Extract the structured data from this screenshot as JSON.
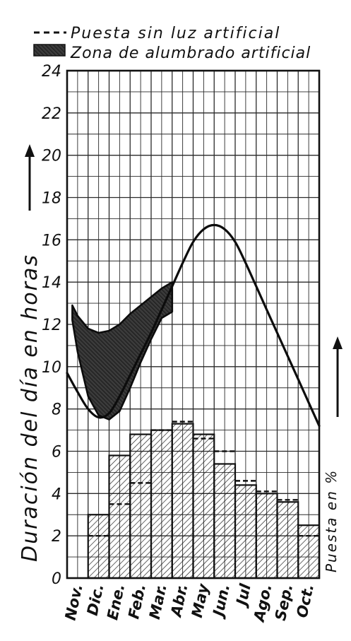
{
  "chart_data": {
    "type": "bar",
    "legend": {
      "placement": "top",
      "entries": [
        {
          "marker": "dashed-line",
          "label": "Puesta sin luz artificial"
        },
        {
          "marker": "hatched-box",
          "label": "Zona de alumbrado artificial"
        }
      ]
    },
    "ylabel": "Duración del día en horas",
    "y2label": "Puesta en %",
    "ylim": [
      0,
      24
    ],
    "yticks": [
      "0",
      "2",
      "4",
      "6",
      "8",
      "10",
      "12",
      "14",
      "16",
      "18",
      "20",
      "22",
      "24"
    ],
    "categories": [
      "Nov.",
      "Dic.",
      "Ene.",
      "Feb.",
      "Mar.",
      "Abr.",
      "May",
      "Jun.",
      "Jul",
      "Ago.",
      "Sep.",
      "Oct."
    ],
    "x_range_months": [
      0,
      12
    ],
    "grid": true,
    "day_length": {
      "x": [
        0,
        0.5,
        1,
        1.5,
        2,
        2.5,
        3,
        3.5,
        4,
        4.5,
        5,
        5.5,
        6,
        6.5,
        7,
        7.5,
        8,
        8.5,
        9,
        9.5,
        10,
        10.5,
        11,
        11.5,
        12
      ],
      "y": [
        9.7,
        8.8,
        8.0,
        7.6,
        7.8,
        8.6,
        9.6,
        10.6,
        11.6,
        12.7,
        13.8,
        14.9,
        15.9,
        16.5,
        16.7,
        16.5,
        15.9,
        14.9,
        13.8,
        12.7,
        11.6,
        10.5,
        9.4,
        8.3,
        7.2
      ]
    },
    "lighting_zone": {
      "x": [
        0.25,
        0.5,
        1,
        1.5,
        2,
        2.5,
        3,
        3.5,
        4,
        4.5,
        5
      ],
      "upper": [
        12.9,
        12.4,
        11.8,
        11.6,
        11.7,
        12.0,
        12.5,
        12.9,
        13.3,
        13.7,
        14.0
      ],
      "lower": [
        12.2,
        10.7,
        8.6,
        7.7,
        7.5,
        7.9,
        9.0,
        10.2,
        11.3,
        12.3,
        12.6
      ]
    },
    "series": [
      {
        "name": "Puesta sin luz artificial",
        "style": "dashed",
        "values": [
          0,
          2.0,
          3.5,
          4.5,
          7.0,
          7.4,
          6.6,
          6.0,
          4.6,
          4.1,
          3.7,
          2.0
        ]
      },
      {
        "style": "hatched-bars",
        "values": [
          0,
          3.0,
          5.8,
          6.8,
          7.0,
          7.3,
          6.8,
          5.4,
          4.4,
          4.0,
          3.6,
          2.5
        ]
      }
    ],
    "colors": {
      "ink": "#111111",
      "paper": "#ffffff",
      "grid": "#2a2a2a"
    }
  }
}
